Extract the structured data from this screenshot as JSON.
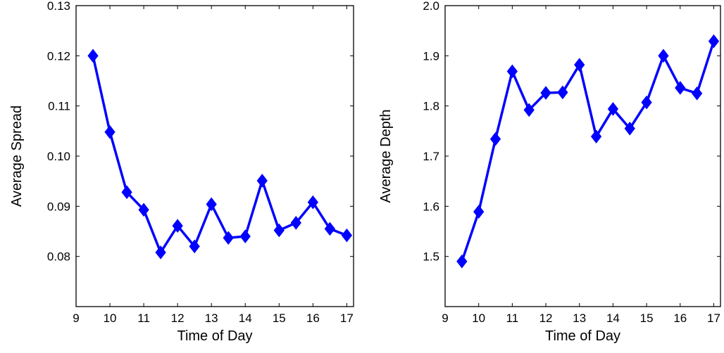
{
  "chart_data": [
    {
      "type": "line",
      "title": "",
      "xlabel": "Time of Day",
      "ylabel": "Average Spread",
      "xlim": [
        9,
        17.2
      ],
      "ylim": [
        0.07,
        0.13
      ],
      "xticks": [
        9,
        10,
        11,
        12,
        13,
        14,
        15,
        16,
        17
      ],
      "xtick_labels": [
        "9",
        "10",
        "11",
        "12",
        "13",
        "14",
        "15",
        "16",
        "17"
      ],
      "yticks": [
        0.08,
        0.09,
        0.1,
        0.11,
        0.12,
        0.13
      ],
      "ytick_labels": [
        "0.08",
        "0.09",
        "0.10",
        "0.11",
        "0.12",
        "0.13"
      ],
      "grid": false,
      "legend": "none",
      "marker": "diamond",
      "color": "#0000ff",
      "series": [
        {
          "name": "",
          "x": [
            9.5,
            10,
            10.5,
            11,
            11.5,
            12,
            12.5,
            13,
            13.5,
            14,
            14.5,
            15,
            15.5,
            16,
            16.5,
            17
          ],
          "values": [
            0.12,
            0.1048,
            0.0928,
            0.0893,
            0.0808,
            0.0861,
            0.082,
            0.0904,
            0.0837,
            0.084,
            0.0951,
            0.0852,
            0.0867,
            0.0908,
            0.0855,
            0.0842
          ]
        }
      ]
    },
    {
      "type": "line",
      "title": "",
      "xlabel": "Time of Day",
      "ylabel": "Average Depth",
      "xlim": [
        9,
        17.2
      ],
      "ylim": [
        1.4,
        2.0
      ],
      "xticks": [
        9,
        10,
        11,
        12,
        13,
        14,
        15,
        16,
        17
      ],
      "xtick_labels": [
        "9",
        "10",
        "11",
        "12",
        "13",
        "14",
        "15",
        "16",
        "17"
      ],
      "yticks": [
        1.5,
        1.6,
        1.7,
        1.8,
        1.9,
        2.0
      ],
      "ytick_labels": [
        "1.5",
        "1.6",
        "1.7",
        "1.8",
        "1.9",
        "2.0"
      ],
      "grid": false,
      "legend": "none",
      "marker": "diamond",
      "color": "#0000ff",
      "series": [
        {
          "name": "",
          "x": [
            9.5,
            10,
            10.5,
            11,
            11.5,
            12,
            12.5,
            13,
            13.5,
            14,
            14.5,
            15,
            15.5,
            16,
            16.5,
            17
          ],
          "values": [
            1.49,
            1.589,
            1.734,
            1.869,
            1.792,
            1.826,
            1.827,
            1.882,
            1.739,
            1.794,
            1.755,
            1.807,
            1.9,
            1.836,
            1.825,
            1.929
          ]
        }
      ]
    }
  ]
}
